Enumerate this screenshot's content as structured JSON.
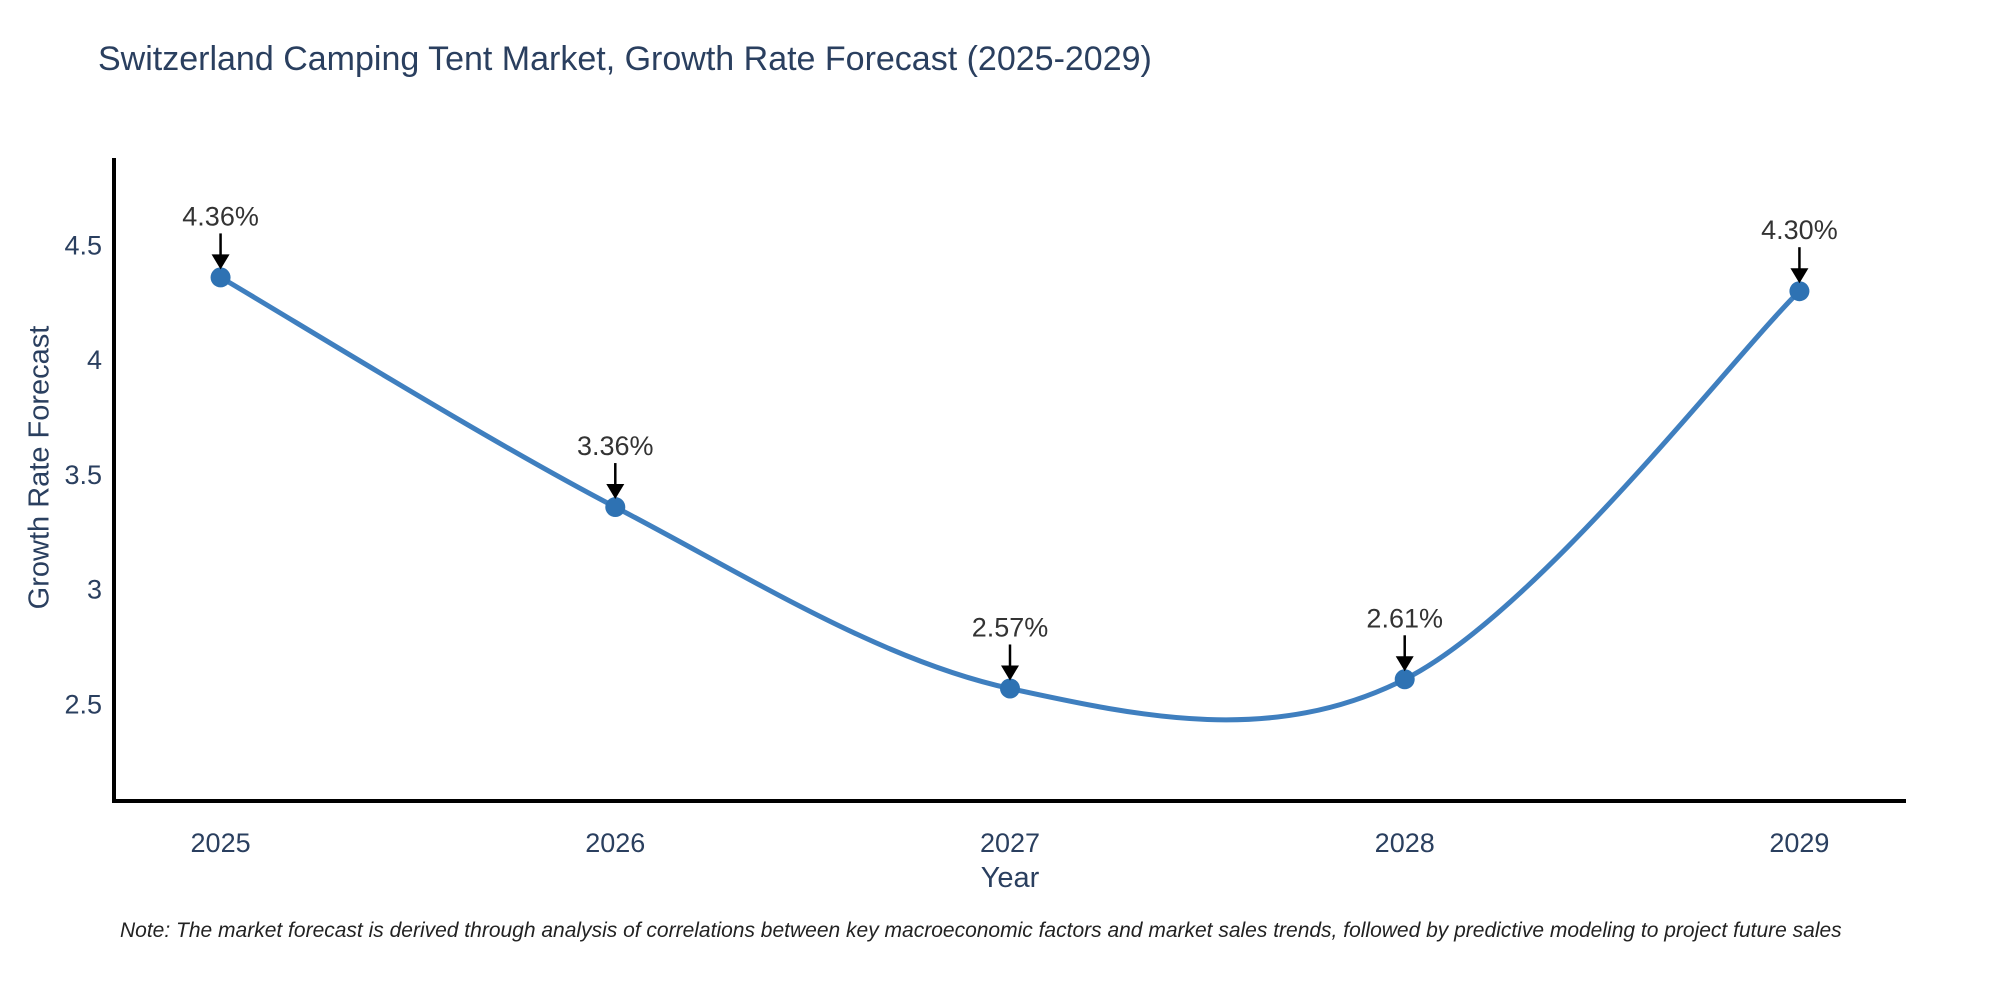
{
  "title": "Switzerland Camping Tent Market, Growth Rate Forecast (2025-2029)",
  "note": "Note: The market forecast is derived through analysis of correlations between key macroeconomic factors and market sales trends, followed by predictive modeling to project future sales",
  "chart_data": {
    "type": "line",
    "title": "Switzerland Camping Tent Market, Growth Rate Forecast (2025-2029)",
    "xlabel": "Year",
    "ylabel": "Growth Rate Forecast",
    "x": [
      2025,
      2026,
      2027,
      2028,
      2029
    ],
    "series": [
      {
        "name": "Growth Rate Forecast",
        "values": [
          4.36,
          3.36,
          2.57,
          2.61,
          4.3
        ]
      }
    ],
    "point_labels": [
      "4.36%",
      "3.36%",
      "2.57%",
      "2.61%",
      "4.30%"
    ],
    "xtick_labels": [
      "2025",
      "2026",
      "2027",
      "2028",
      "2029"
    ],
    "xtick_values": [
      2025,
      2026,
      2027,
      2028,
      2029
    ],
    "ytick_labels": [
      "4.5",
      "4",
      "3.5",
      "3",
      "2.5"
    ],
    "ytick_values": [
      4.5,
      4.0,
      3.5,
      3.0,
      2.5
    ],
    "xlim": [
      2024.73,
      2029.27
    ],
    "ylim": [
      2.08,
      4.88
    ],
    "grid": false,
    "legend": false,
    "line_shape": "spline",
    "annotation_arrows": true,
    "colors": {
      "line": "#3f7fbf",
      "marker": "#2e72b3",
      "axis": "#000000",
      "axis_text": "#2a3f5f",
      "annotation_text": "#333333",
      "arrow": "#000000",
      "title_text": "#2a3f5f",
      "background": "#ffffff"
    }
  }
}
